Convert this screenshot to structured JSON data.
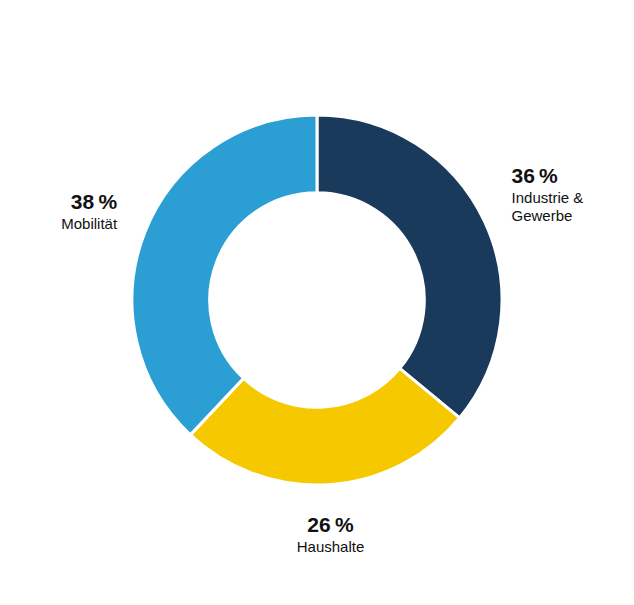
{
  "chart_data": {
    "type": "donut",
    "categories": [
      "Industrie &\nGewerbe",
      "Haushalte",
      "Mobilität"
    ],
    "values": [
      36,
      26,
      38
    ],
    "value_labels": [
      "36 %",
      "26 %",
      "38 %"
    ],
    "colors": [
      "#1a3a5c",
      "#f5c800",
      "#2b9fd4"
    ],
    "data_labels": true
  }
}
